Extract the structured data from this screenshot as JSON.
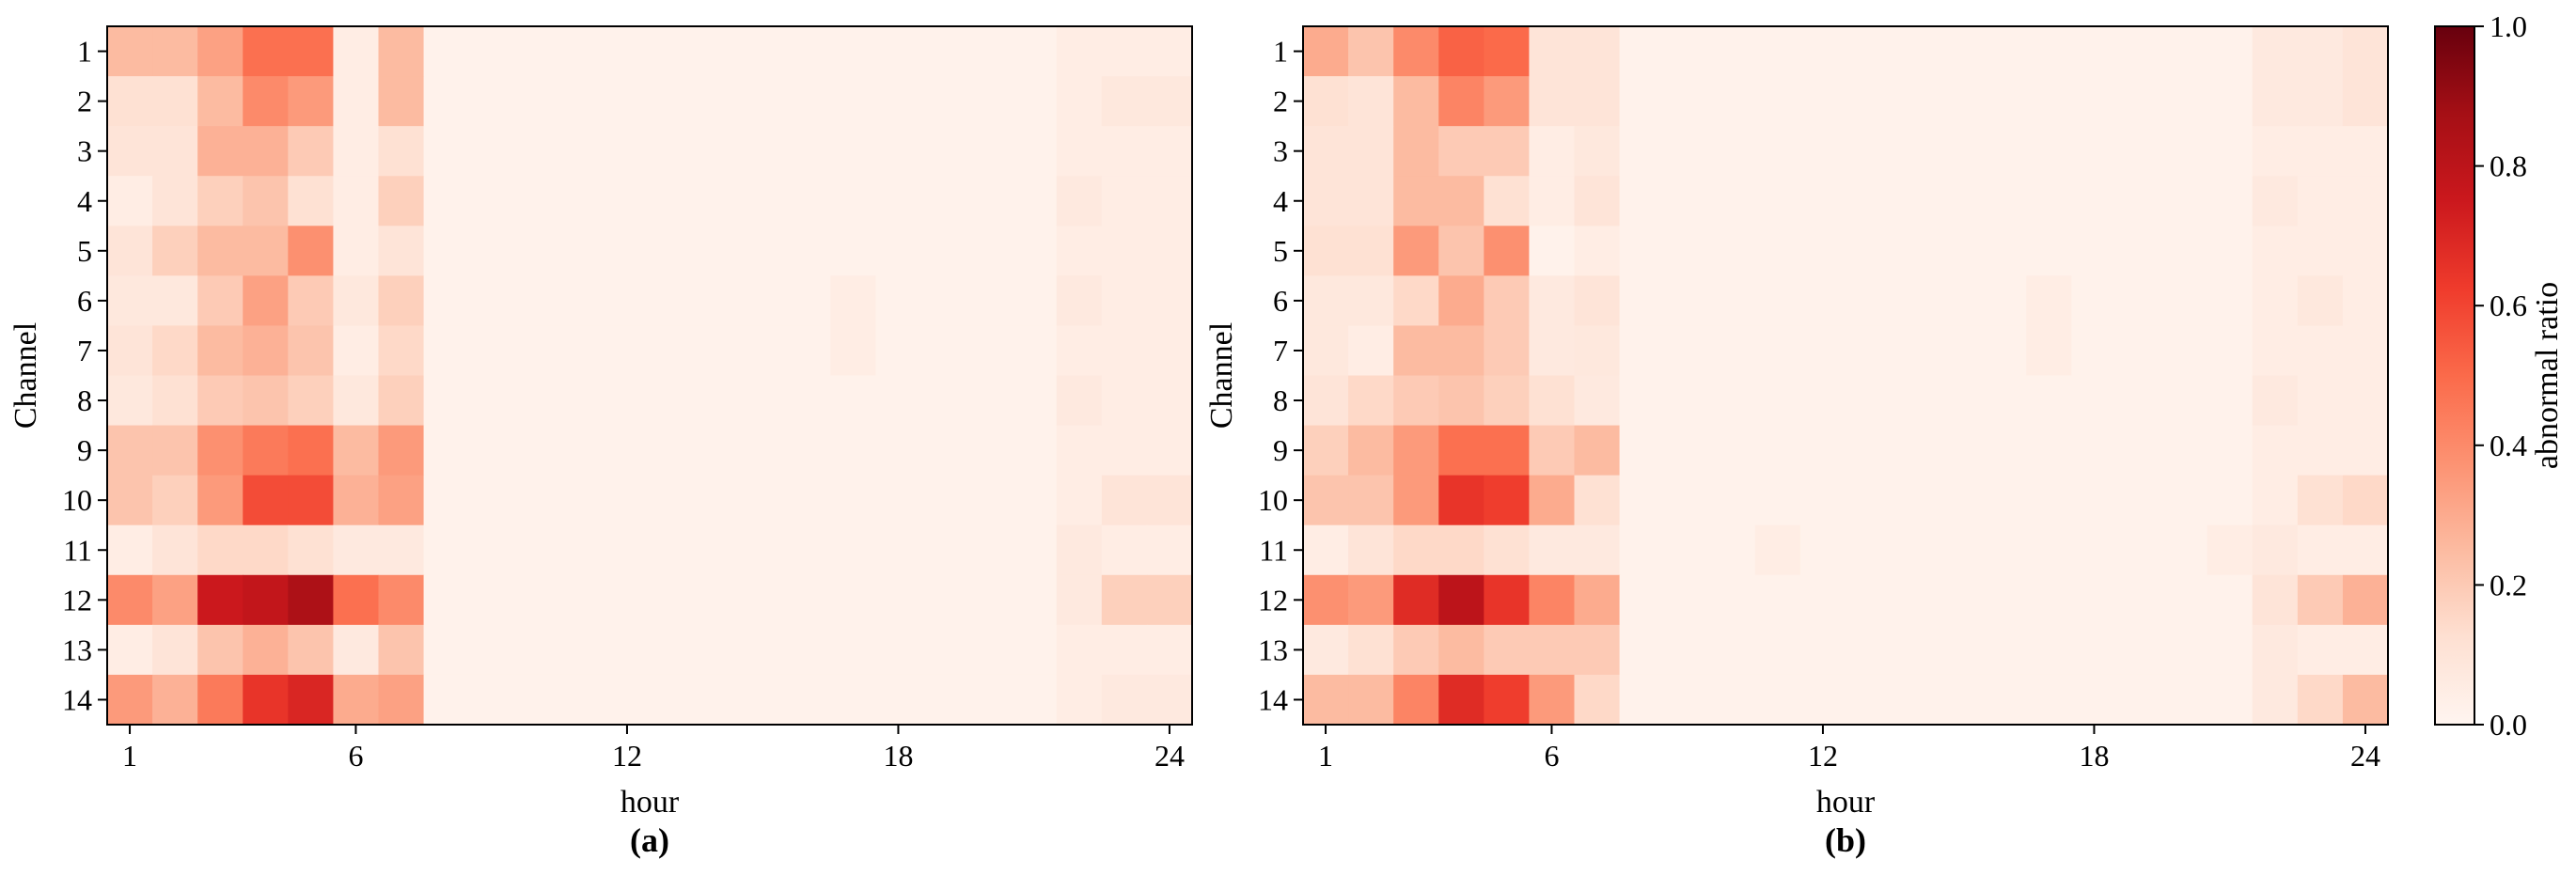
{
  "chart_data": [
    {
      "type": "heatmap",
      "label": "(a)",
      "xlabel": "hour",
      "ylabel": "Channel",
      "x_ticks": [
        "1",
        "6",
        "12",
        "18",
        "24"
      ],
      "y_ticks": [
        "1",
        "2",
        "3",
        "4",
        "5",
        "6",
        "7",
        "8",
        "9",
        "10",
        "11",
        "12",
        "13",
        "14"
      ],
      "hours": [
        1,
        2,
        3,
        4,
        5,
        6,
        7,
        8,
        9,
        10,
        11,
        12,
        13,
        14,
        15,
        16,
        17,
        18,
        19,
        20,
        21,
        22,
        23,
        24
      ],
      "channels": [
        1,
        2,
        3,
        4,
        5,
        6,
        7,
        8,
        9,
        10,
        11,
        12,
        13,
        14
      ],
      "values": [
        [
          0.25,
          0.25,
          0.33,
          0.48,
          0.48,
          0.05,
          0.25,
          0.02,
          0.02,
          0.02,
          0.02,
          0.02,
          0.02,
          0.02,
          0.02,
          0.02,
          0.02,
          0.02,
          0.02,
          0.02,
          0.02,
          0.05,
          0.05,
          0.05
        ],
        [
          0.12,
          0.12,
          0.25,
          0.4,
          0.35,
          0.05,
          0.25,
          0.02,
          0.02,
          0.02,
          0.02,
          0.02,
          0.02,
          0.02,
          0.02,
          0.02,
          0.02,
          0.02,
          0.02,
          0.02,
          0.02,
          0.05,
          0.08,
          0.08
        ],
        [
          0.1,
          0.1,
          0.28,
          0.28,
          0.2,
          0.05,
          0.12,
          0.02,
          0.02,
          0.02,
          0.02,
          0.02,
          0.02,
          0.02,
          0.02,
          0.02,
          0.02,
          0.02,
          0.02,
          0.02,
          0.02,
          0.05,
          0.05,
          0.05
        ],
        [
          0.05,
          0.1,
          0.18,
          0.22,
          0.12,
          0.05,
          0.18,
          0.02,
          0.02,
          0.02,
          0.02,
          0.02,
          0.02,
          0.02,
          0.02,
          0.02,
          0.02,
          0.02,
          0.02,
          0.02,
          0.02,
          0.07,
          0.05,
          0.05
        ],
        [
          0.1,
          0.18,
          0.25,
          0.25,
          0.38,
          0.05,
          0.1,
          0.02,
          0.02,
          0.02,
          0.02,
          0.02,
          0.02,
          0.02,
          0.02,
          0.02,
          0.02,
          0.02,
          0.02,
          0.02,
          0.02,
          0.05,
          0.05,
          0.05
        ],
        [
          0.08,
          0.08,
          0.2,
          0.33,
          0.2,
          0.08,
          0.18,
          0.02,
          0.02,
          0.02,
          0.02,
          0.02,
          0.02,
          0.02,
          0.02,
          0.02,
          0.05,
          0.02,
          0.02,
          0.02,
          0.02,
          0.07,
          0.05,
          0.05
        ],
        [
          0.1,
          0.15,
          0.25,
          0.28,
          0.22,
          0.05,
          0.15,
          0.02,
          0.02,
          0.02,
          0.02,
          0.02,
          0.02,
          0.02,
          0.02,
          0.02,
          0.05,
          0.02,
          0.02,
          0.02,
          0.02,
          0.05,
          0.05,
          0.05
        ],
        [
          0.08,
          0.12,
          0.2,
          0.22,
          0.18,
          0.08,
          0.18,
          0.02,
          0.02,
          0.02,
          0.02,
          0.02,
          0.02,
          0.02,
          0.02,
          0.02,
          0.02,
          0.02,
          0.02,
          0.02,
          0.02,
          0.07,
          0.05,
          0.05
        ],
        [
          0.22,
          0.22,
          0.38,
          0.45,
          0.48,
          0.25,
          0.35,
          0.02,
          0.02,
          0.02,
          0.02,
          0.02,
          0.02,
          0.02,
          0.02,
          0.02,
          0.02,
          0.02,
          0.02,
          0.02,
          0.02,
          0.05,
          0.05,
          0.05
        ],
        [
          0.22,
          0.18,
          0.35,
          0.58,
          0.58,
          0.28,
          0.33,
          0.02,
          0.02,
          0.02,
          0.02,
          0.02,
          0.02,
          0.02,
          0.02,
          0.02,
          0.02,
          0.02,
          0.02,
          0.02,
          0.02,
          0.05,
          0.1,
          0.1
        ],
        [
          0.05,
          0.1,
          0.15,
          0.15,
          0.12,
          0.07,
          0.07,
          0.02,
          0.02,
          0.02,
          0.02,
          0.02,
          0.02,
          0.02,
          0.02,
          0.02,
          0.02,
          0.02,
          0.02,
          0.02,
          0.02,
          0.07,
          0.05,
          0.05
        ],
        [
          0.4,
          0.33,
          0.75,
          0.78,
          0.85,
          0.48,
          0.4,
          0.02,
          0.02,
          0.02,
          0.02,
          0.02,
          0.02,
          0.02,
          0.02,
          0.02,
          0.02,
          0.02,
          0.02,
          0.02,
          0.02,
          0.07,
          0.18,
          0.18
        ],
        [
          0.05,
          0.1,
          0.22,
          0.28,
          0.22,
          0.07,
          0.22,
          0.02,
          0.02,
          0.02,
          0.02,
          0.02,
          0.02,
          0.02,
          0.02,
          0.02,
          0.02,
          0.02,
          0.02,
          0.02,
          0.02,
          0.05,
          0.05,
          0.05
        ],
        [
          0.35,
          0.28,
          0.45,
          0.65,
          0.7,
          0.3,
          0.33,
          0.02,
          0.02,
          0.02,
          0.02,
          0.02,
          0.02,
          0.02,
          0.02,
          0.02,
          0.02,
          0.02,
          0.02,
          0.02,
          0.02,
          0.05,
          0.07,
          0.07
        ]
      ],
      "colormap": "Reds",
      "vmin": 0.0,
      "vmax": 1.0
    },
    {
      "type": "heatmap",
      "label": "(b)",
      "xlabel": "hour",
      "ylabel": "Channel",
      "x_ticks": [
        "1",
        "6",
        "12",
        "18",
        "24"
      ],
      "y_ticks": [
        "1",
        "2",
        "3",
        "4",
        "5",
        "6",
        "7",
        "8",
        "9",
        "10",
        "11",
        "12",
        "13",
        "14"
      ],
      "hours": [
        1,
        2,
        3,
        4,
        5,
        6,
        7,
        8,
        9,
        10,
        11,
        12,
        13,
        14,
        15,
        16,
        17,
        18,
        19,
        20,
        21,
        22,
        23,
        24
      ],
      "channels": [
        1,
        2,
        3,
        4,
        5,
        6,
        7,
        8,
        9,
        10,
        11,
        12,
        13,
        14
      ],
      "values": [
        [
          0.3,
          0.22,
          0.4,
          0.52,
          0.5,
          0.1,
          0.1,
          0.02,
          0.02,
          0.02,
          0.02,
          0.02,
          0.02,
          0.02,
          0.02,
          0.02,
          0.02,
          0.02,
          0.02,
          0.02,
          0.02,
          0.07,
          0.07,
          0.1
        ],
        [
          0.12,
          0.1,
          0.25,
          0.42,
          0.35,
          0.1,
          0.1,
          0.02,
          0.02,
          0.02,
          0.02,
          0.02,
          0.02,
          0.02,
          0.02,
          0.02,
          0.02,
          0.02,
          0.02,
          0.02,
          0.02,
          0.07,
          0.07,
          0.1
        ],
        [
          0.1,
          0.1,
          0.25,
          0.2,
          0.2,
          0.05,
          0.08,
          0.02,
          0.02,
          0.02,
          0.02,
          0.02,
          0.02,
          0.02,
          0.02,
          0.02,
          0.02,
          0.02,
          0.02,
          0.02,
          0.02,
          0.05,
          0.05,
          0.05
        ],
        [
          0.1,
          0.1,
          0.25,
          0.25,
          0.12,
          0.05,
          0.1,
          0.02,
          0.02,
          0.02,
          0.02,
          0.02,
          0.02,
          0.02,
          0.02,
          0.02,
          0.02,
          0.02,
          0.02,
          0.02,
          0.02,
          0.07,
          0.05,
          0.05
        ],
        [
          0.12,
          0.12,
          0.35,
          0.22,
          0.38,
          0.02,
          0.05,
          0.02,
          0.02,
          0.02,
          0.02,
          0.02,
          0.02,
          0.02,
          0.02,
          0.02,
          0.02,
          0.02,
          0.02,
          0.02,
          0.02,
          0.05,
          0.05,
          0.05
        ],
        [
          0.08,
          0.08,
          0.15,
          0.3,
          0.2,
          0.07,
          0.1,
          0.02,
          0.02,
          0.02,
          0.02,
          0.02,
          0.02,
          0.02,
          0.02,
          0.02,
          0.05,
          0.02,
          0.02,
          0.02,
          0.02,
          0.05,
          0.08,
          0.05
        ],
        [
          0.08,
          0.05,
          0.25,
          0.25,
          0.2,
          0.07,
          0.08,
          0.02,
          0.02,
          0.02,
          0.02,
          0.02,
          0.02,
          0.02,
          0.02,
          0.02,
          0.05,
          0.02,
          0.02,
          0.02,
          0.02,
          0.05,
          0.05,
          0.05
        ],
        [
          0.1,
          0.15,
          0.2,
          0.22,
          0.18,
          0.12,
          0.07,
          0.02,
          0.02,
          0.02,
          0.02,
          0.02,
          0.02,
          0.02,
          0.02,
          0.02,
          0.02,
          0.02,
          0.02,
          0.02,
          0.02,
          0.07,
          0.05,
          0.05
        ],
        [
          0.18,
          0.25,
          0.35,
          0.48,
          0.48,
          0.2,
          0.25,
          0.02,
          0.02,
          0.02,
          0.02,
          0.02,
          0.02,
          0.02,
          0.02,
          0.02,
          0.02,
          0.02,
          0.02,
          0.02,
          0.02,
          0.05,
          0.05,
          0.05
        ],
        [
          0.22,
          0.22,
          0.35,
          0.65,
          0.62,
          0.3,
          0.12,
          0.02,
          0.02,
          0.02,
          0.02,
          0.02,
          0.02,
          0.02,
          0.02,
          0.02,
          0.02,
          0.02,
          0.02,
          0.02,
          0.02,
          0.05,
          0.12,
          0.15
        ],
        [
          0.05,
          0.1,
          0.15,
          0.15,
          0.12,
          0.07,
          0.07,
          0.02,
          0.02,
          0.02,
          0.05,
          0.02,
          0.02,
          0.02,
          0.02,
          0.02,
          0.02,
          0.02,
          0.02,
          0.02,
          0.05,
          0.07,
          0.05,
          0.05
        ],
        [
          0.38,
          0.35,
          0.68,
          0.8,
          0.65,
          0.42,
          0.3,
          0.02,
          0.02,
          0.02,
          0.02,
          0.02,
          0.02,
          0.02,
          0.02,
          0.02,
          0.02,
          0.02,
          0.02,
          0.02,
          0.02,
          0.1,
          0.2,
          0.28
        ],
        [
          0.07,
          0.12,
          0.2,
          0.25,
          0.2,
          0.2,
          0.2,
          0.02,
          0.02,
          0.02,
          0.02,
          0.02,
          0.02,
          0.02,
          0.02,
          0.02,
          0.02,
          0.02,
          0.02,
          0.02,
          0.02,
          0.07,
          0.05,
          0.05
        ],
        [
          0.25,
          0.25,
          0.42,
          0.68,
          0.62,
          0.35,
          0.15,
          0.02,
          0.02,
          0.02,
          0.02,
          0.02,
          0.02,
          0.02,
          0.02,
          0.02,
          0.02,
          0.02,
          0.02,
          0.02,
          0.02,
          0.07,
          0.15,
          0.25
        ]
      ],
      "colormap": "Reds",
      "vmin": 0.0,
      "vmax": 1.0
    }
  ],
  "colorbar": {
    "label": "abnormal ratio",
    "ticks": [
      "0.0",
      "0.2",
      "0.4",
      "0.6",
      "0.8",
      "1.0"
    ],
    "tick_values": [
      0.0,
      0.2,
      0.4,
      0.6,
      0.8,
      1.0
    ]
  }
}
